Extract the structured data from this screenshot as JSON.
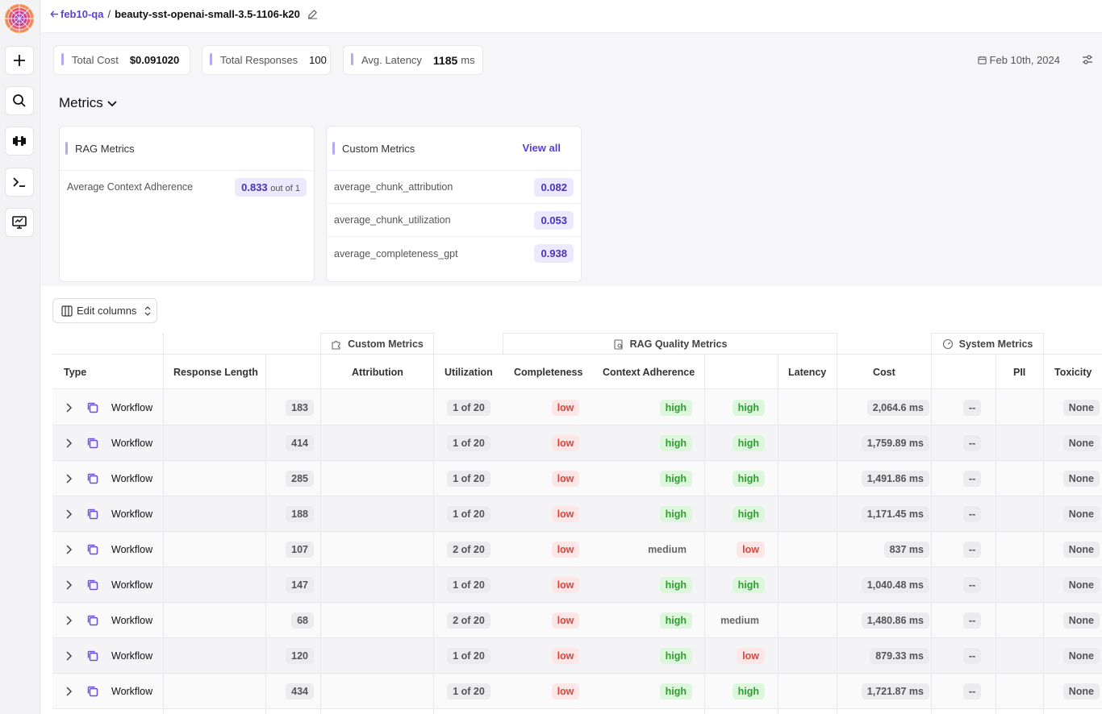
{
  "header": {
    "back_label": "feb10-qa",
    "separator": "/",
    "title": "beauty-sst-openai-small-3.5-1106-k20"
  },
  "stats": {
    "total_cost_label": "Total Cost",
    "total_cost_value": "$0.091020",
    "total_responses_label": "Total Responses",
    "total_responses_value": "100",
    "avg_latency_label": "Avg. Latency",
    "avg_latency_value": "1185",
    "avg_latency_unit": "ms",
    "date": "Feb 10th, 2024"
  },
  "metrics": {
    "heading": "Metrics",
    "rag_title": "RAG Metrics",
    "rag_items": [
      {
        "label": "Average Context Adherence",
        "value": "0.833",
        "suffix": "out of 1"
      }
    ],
    "custom_title": "Custom Metrics",
    "view_all": "View all",
    "custom_items": [
      {
        "label": "average_chunk_attribution",
        "value": "0.082"
      },
      {
        "label": "average_chunk_utilization",
        "value": "0.053"
      },
      {
        "label": "average_completeness_gpt",
        "value": "0.938"
      }
    ]
  },
  "table": {
    "edit_columns": "Edit columns",
    "groups": {
      "custom": "Custom Metrics",
      "rag": "RAG Quality Metrics",
      "system": "System Metrics"
    },
    "columns": {
      "type": "Type",
      "response_length": "Response Length",
      "attribution": "Attribution",
      "utilization": "Utilization",
      "completeness": "Completeness",
      "context_adherence": "Context Adherence",
      "latency": "Latency",
      "cost": "Cost",
      "pii": "PII",
      "toxicity": "Toxicity"
    },
    "rows": [
      {
        "type": "Workflow",
        "length": "183",
        "attribution": "1 of 20",
        "utilization": "low",
        "completeness": "high",
        "adherence": "high",
        "latency": "2,064.6 ms",
        "cost": "--",
        "toxicity": "None"
      },
      {
        "type": "Workflow",
        "length": "414",
        "attribution": "1 of 20",
        "utilization": "low",
        "completeness": "high",
        "adherence": "high",
        "latency": "1,759.89 ms",
        "cost": "--",
        "toxicity": "None"
      },
      {
        "type": "Workflow",
        "length": "285",
        "attribution": "1 of 20",
        "utilization": "low",
        "completeness": "high",
        "adherence": "high",
        "latency": "1,491.86 ms",
        "cost": "--",
        "toxicity": "None"
      },
      {
        "type": "Workflow",
        "length": "188",
        "attribution": "1 of 20",
        "utilization": "low",
        "completeness": "high",
        "adherence": "high",
        "latency": "1,171.45 ms",
        "cost": "--",
        "toxicity": "None"
      },
      {
        "type": "Workflow",
        "length": "107",
        "attribution": "2 of 20",
        "utilization": "low",
        "completeness": "medium",
        "adherence": "low",
        "latency": "837 ms",
        "cost": "--",
        "toxicity": "None"
      },
      {
        "type": "Workflow",
        "length": "147",
        "attribution": "1 of 20",
        "utilization": "low",
        "completeness": "high",
        "adherence": "high",
        "latency": "1,040.48 ms",
        "cost": "--",
        "toxicity": "None"
      },
      {
        "type": "Workflow",
        "length": "68",
        "attribution": "2 of 20",
        "utilization": "low",
        "completeness": "high",
        "adherence": "medium",
        "latency": "1,480.86 ms",
        "cost": "--",
        "toxicity": "None"
      },
      {
        "type": "Workflow",
        "length": "120",
        "attribution": "1 of 20",
        "utilization": "low",
        "completeness": "high",
        "adherence": "low",
        "latency": "879.33 ms",
        "cost": "--",
        "toxicity": "None"
      },
      {
        "type": "Workflow",
        "length": "434",
        "attribution": "1 of 20",
        "utilization": "low",
        "completeness": "high",
        "adherence": "high",
        "latency": "1,721.87 ms",
        "cost": "--",
        "toxicity": "None"
      }
    ]
  },
  "colors": {
    "accent": "#5b3fd1",
    "low": "#e0453a",
    "high": "#2f9e2f"
  }
}
